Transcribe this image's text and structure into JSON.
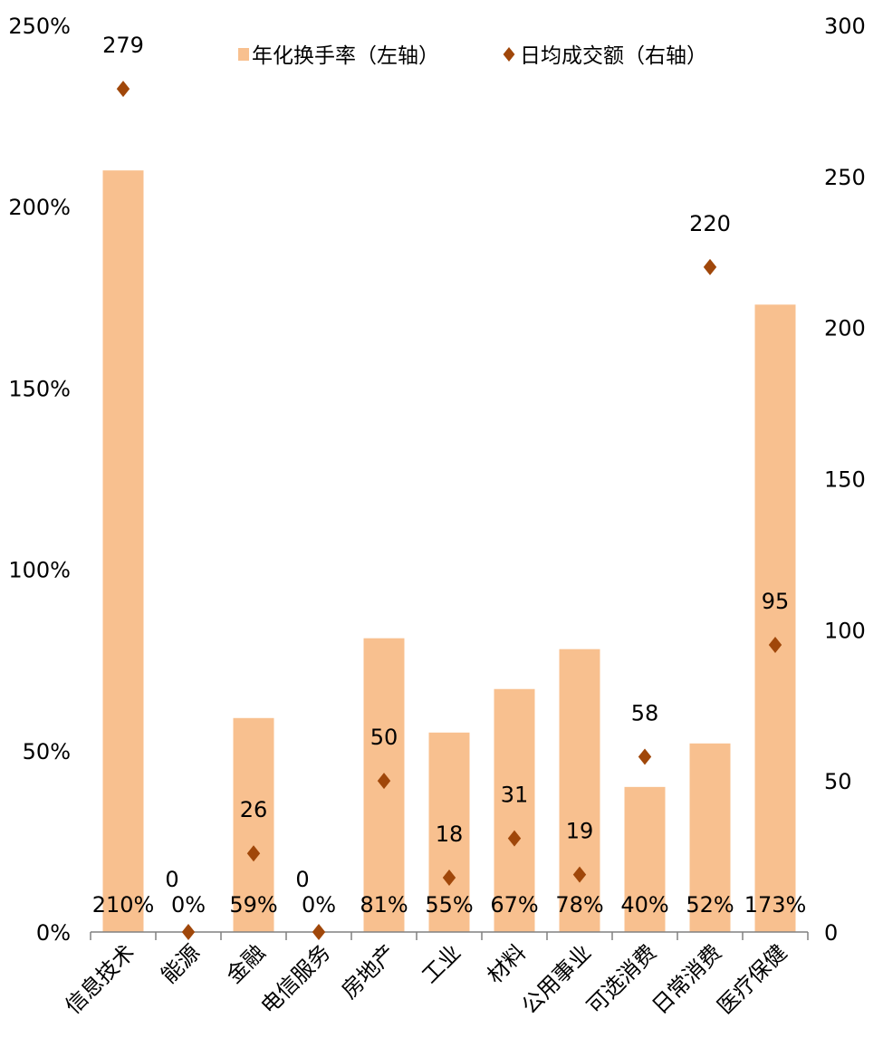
{
  "chart_data": {
    "type": "bar",
    "categories": [
      "信息技术",
      "能源",
      "金融",
      "电信服务",
      "房地产",
      "工业",
      "材料",
      "公用事业",
      "可选消费",
      "日常消费",
      "医疗保健"
    ],
    "series": [
      {
        "name": "年化换手率（左轴）",
        "type": "bar",
        "axis": "left",
        "values": [
          210,
          0,
          59,
          0,
          81,
          55,
          67,
          78,
          40,
          52,
          173
        ],
        "labels": [
          "210%",
          "0%",
          "59%",
          "0%",
          "81%",
          "55%",
          "67%",
          "78%",
          "40%",
          "52%",
          "173%"
        ]
      },
      {
        "name": "日均成交额（右轴）",
        "type": "scatter",
        "marker": "diamond",
        "axis": "right",
        "values": [
          279,
          0,
          26,
          0,
          50,
          18,
          31,
          19,
          58,
          220,
          95
        ],
        "labels": [
          "279",
          "0",
          "26",
          "0",
          "50",
          "18",
          "31",
          "19",
          "58",
          "220",
          "95"
        ]
      }
    ],
    "left_axis": {
      "ylim": [
        0,
        250
      ],
      "ticks": [
        0,
        50,
        100,
        150,
        200,
        250
      ],
      "tick_labels": [
        "0%",
        "50%",
        "100%",
        "150%",
        "200%",
        "250%"
      ]
    },
    "right_axis": {
      "ylim": [
        0,
        300
      ],
      "ticks": [
        0,
        50,
        100,
        150,
        200,
        250,
        300
      ],
      "tick_labels": [
        "0",
        "50",
        "100",
        "150",
        "200",
        "250",
        "300"
      ]
    },
    "legend": {
      "position": "top"
    },
    "grid": false,
    "colors": {
      "bar": "#F8C08F",
      "marker": "#A0470A",
      "axis": "#808080"
    }
  }
}
